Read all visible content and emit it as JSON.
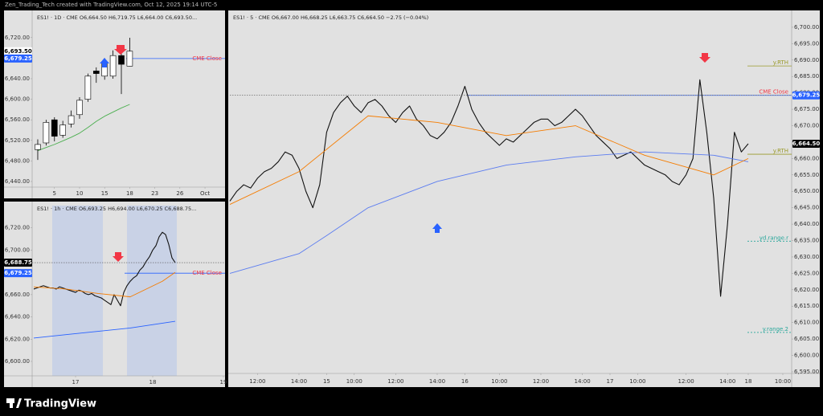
{
  "header": {
    "credit": "Zen_Trading_Tech created with TradingView.com, Oct 12, 2025 19:14 UTC-5"
  },
  "footer": {
    "brand": "TradingView"
  },
  "chart_data": [
    {
      "type": "candlestick",
      "subtitle": "ES1! · 1D · CME O6,664.50 H6,719.75 L6,664.00 C6,693.50...",
      "open": [
        6502,
        6515,
        6560,
        6530,
        6552,
        6570,
        6600,
        6655,
        6645,
        6645,
        6685,
        6664.5
      ],
      "high": [
        6522,
        6560,
        6565,
        6558,
        6578,
        6604,
        6650,
        6662,
        6680,
        6695,
        6700,
        6719.75
      ],
      "low": [
        6482,
        6510,
        6518,
        6525,
        6545,
        6562,
        6595,
        6632,
        6638,
        6640,
        6610,
        6664
      ],
      "close": [
        6512,
        6555,
        6528,
        6550,
        6568,
        6598,
        6645,
        6650,
        6672,
        6685,
        6668,
        6693.5
      ],
      "series": [
        {
          "color": "#4caf50",
          "values": [
            6500,
            6506,
            6512,
            6519,
            6526,
            6534,
            6545,
            6557,
            6567,
            6575,
            6583,
            6590
          ]
        }
      ],
      "xlim": [
        -0.67,
        22.4
      ],
      "xticks": [
        {
          "value": 2,
          "label": "5"
        },
        {
          "value": 5,
          "label": "10"
        },
        {
          "value": 8,
          "label": "15"
        },
        {
          "value": 11,
          "label": "18"
        },
        {
          "value": 14,
          "label": "23"
        },
        {
          "value": 17,
          "label": "26"
        },
        {
          "value": 20,
          "label": "Oct"
        }
      ],
      "ylim": [
        6429,
        6765
      ],
      "yticks": [
        {
          "value": 6440,
          "label": "6,440.00"
        },
        {
          "value": 6480,
          "label": "6,480.00"
        },
        {
          "value": 6520,
          "label": "6,520.00"
        },
        {
          "value": 6560,
          "label": "6,560.00"
        },
        {
          "value": 6600,
          "label": "6,600.00"
        },
        {
          "value": 6640,
          "label": "6,640.00"
        },
        {
          "value": 6680,
          "label": "6,680.00"
        },
        {
          "value": 6720,
          "label": "6,720.00"
        }
      ],
      "levels": [
        {
          "label": "CME Close",
          "value": 6679.25,
          "color": "#2962ff",
          "text_color": "#f23645"
        }
      ],
      "price_labels": [
        {
          "value": 6693.5,
          "label": "6,693.50",
          "color": "#ffffff",
          "text_color": "#000000"
        },
        {
          "value": 6679.25,
          "label": "6,679.25",
          "color": "#2962ff",
          "text_color": "#ffffff"
        }
      ]
    },
    {
      "type": "line",
      "subtitle": "ES1! · 1h · CME O6,693.25 H6,694.00 L6,670.25 C6,688.75...",
      "series": [
        {
          "color": "#111111",
          "values": [
            6665,
            6666,
            6667,
            6668,
            6667,
            6666,
            6666,
            6665,
            6667,
            6666,
            6665,
            6664,
            6663,
            6662,
            6664,
            6663,
            6661,
            6660,
            6661,
            6659,
            6658,
            6657,
            6655,
            6653,
            6651,
            6660,
            6655,
            6650,
            6662,
            6668,
            6672,
            6675,
            6677,
            6682,
            6685,
            6690,
            6694,
            6700,
            6704,
            6712,
            6716,
            6714,
            6705,
            6693,
            6688.75
          ]
        },
        {
          "color": "#2962ff",
          "x": [
            0,
            10,
            20,
            30,
            44
          ],
          "values": [
            6621,
            6624,
            6627,
            6630,
            6636
          ]
        },
        {
          "color": "#f57c00",
          "x": [
            0,
            10,
            20,
            30,
            40,
            44
          ],
          "values": [
            6667,
            6665,
            6661,
            6658,
            6672,
            6680
          ]
        }
      ],
      "xlim": [
        -0.5,
        59.5
      ],
      "xticks": [
        {
          "value": 13,
          "label": "17"
        },
        {
          "value": 37,
          "label": "18"
        },
        {
          "value": 59,
          "label": "19"
        }
      ],
      "ylim": [
        6587,
        6740
      ],
      "yticks": [
        {
          "value": 6600,
          "label": "6,600.00"
        },
        {
          "value": 6620,
          "label": "6,620.00"
        },
        {
          "value": 6640,
          "label": "6,640.00"
        },
        {
          "value": 6660,
          "label": "6,660.00"
        },
        {
          "value": 6680,
          "label": "6,680.00"
        },
        {
          "value": 6700,
          "label": "6,700.00"
        },
        {
          "value": 6720,
          "label": "6,720.00"
        }
      ],
      "levels": [
        {
          "label": "CME Close",
          "value": 6679.25,
          "color": "#2962ff",
          "text_color": "#f23645"
        }
      ],
      "price_labels": [
        {
          "value": 6688.75,
          "label": "6,688.75",
          "color": "#000000",
          "text_color": "#ffffff"
        },
        {
          "value": 6679.25,
          "label": "6,679.25",
          "color": "#2962ff",
          "text_color": "#ffffff"
        }
      ]
    },
    {
      "type": "line",
      "subtitle": "ES1! · 5 · CME O6,667.00 H6,668.25 L6,663.75 C6,664.50 −2.75 (−0.04%)",
      "series": [
        {
          "color": "#111111",
          "values": [
            6647,
            6650,
            6652,
            6651,
            6654,
            6656,
            6657,
            6659,
            6662,
            6661,
            6657,
            6650,
            6645,
            6652,
            6668,
            6674,
            6677,
            6679,
            6676,
            6674,
            6677,
            6678,
            6676,
            6673,
            6671,
            6674,
            6676,
            6672,
            6670,
            6667,
            6666,
            6668,
            6671,
            6676,
            6682,
            6675,
            6671,
            6668,
            6666,
            6664,
            6666,
            6665,
            6667,
            6669,
            6671,
            6672,
            6672,
            6670,
            6671,
            6673,
            6675,
            6673,
            6670,
            6667,
            6665,
            6663,
            6660,
            6661,
            6662,
            6660,
            6658,
            6657,
            6656,
            6655,
            6653,
            6652,
            6655,
            6660,
            6684,
            6668,
            6648,
            6618,
            6640,
            6668,
            6662,
            6664.5
          ]
        },
        {
          "color": "#5b7cf0",
          "x": [
            0,
            10,
            14,
            20,
            30,
            40,
            50,
            60,
            70,
            75
          ],
          "values": [
            6625,
            6631,
            6636.5,
            6645,
            6653,
            6658,
            6660.5,
            6662,
            6661,
            6659
          ]
        },
        {
          "color": "#f57c00",
          "x": [
            0,
            10,
            20,
            30,
            40,
            50,
            60,
            70,
            75
          ],
          "values": [
            6646,
            6656,
            6673,
            6671,
            6667,
            6670,
            6661,
            6655,
            6660
          ]
        }
      ],
      "xlim": [
        0,
        81.28
      ],
      "xticks": [
        {
          "value": 4,
          "label": "12:00"
        },
        {
          "value": 10,
          "label": "14:00"
        },
        {
          "value": 14,
          "label": "15"
        },
        {
          "value": 18,
          "label": "10:00"
        },
        {
          "value": 24,
          "label": "12:00"
        },
        {
          "value": 30,
          "label": "14:00"
        },
        {
          "value": 34,
          "label": "16"
        },
        {
          "value": 39,
          "label": "10:00"
        },
        {
          "value": 45,
          "label": "12:00"
        },
        {
          "value": 51,
          "label": "14:00"
        },
        {
          "value": 55,
          "label": "17"
        },
        {
          "value": 59,
          "label": "10:00"
        },
        {
          "value": 66,
          "label": "12:00"
        },
        {
          "value": 72,
          "label": "14:00"
        },
        {
          "value": 75,
          "label": "18"
        },
        {
          "value": 80,
          "label": "10:00"
        }
      ],
      "ylim": [
        6594.5,
        6703.9
      ],
      "yticks": [
        {
          "value": 6595,
          "label": "6,595.00"
        },
        {
          "value": 6600,
          "label": "6,600.00"
        },
        {
          "value": 6605,
          "label": "6,605.00"
        },
        {
          "value": 6610,
          "label": "6,610.00"
        },
        {
          "value": 6615,
          "label": "6,615.00"
        },
        {
          "value": 6620,
          "label": "6,620.00"
        },
        {
          "value": 6625,
          "label": "6,625.00"
        },
        {
          "value": 6630,
          "label": "6,630.00"
        },
        {
          "value": 6635,
          "label": "6,635.00"
        },
        {
          "value": 6640,
          "label": "6,640.00"
        },
        {
          "value": 6645,
          "label": "6,645.00"
        },
        {
          "value": 6650,
          "label": "6,650.00"
        },
        {
          "value": 6655,
          "label": "6,655.00"
        },
        {
          "value": 6660,
          "label": "6,660.00"
        },
        {
          "value": 6665,
          "label": "6,665.00"
        },
        {
          "value": 6670,
          "label": "6,670.00"
        },
        {
          "value": 6675,
          "label": "6,675.00"
        },
        {
          "value": 6680,
          "label": "6,680.00"
        },
        {
          "value": 6685,
          "label": "6,685.00"
        },
        {
          "value": 6690,
          "label": "6,690.00"
        },
        {
          "value": 6695,
          "label": "6,695.00"
        },
        {
          "value": 6700,
          "label": "6,700.00"
        }
      ],
      "levels": [
        {
          "label": "y.RTH",
          "value": 6688.2,
          "color": "#9a9a2a",
          "text_color": "#9a9a2a"
        },
        {
          "label": "CME Close",
          "value": 6679.25,
          "color": "#2962ff",
          "text_color": "#f23645"
        },
        {
          "label": "y.RTH",
          "value": 6661.3,
          "color": "#9a9a2a",
          "text_color": "#9a9a2a"
        },
        {
          "label": "yd.range.r",
          "value": 6634.8,
          "color": "#26a69a",
          "text_color": "#26a69a"
        },
        {
          "label": "y.range.2",
          "value": 6607,
          "color": "#26a69a",
          "text_color": "#26a69a"
        }
      ],
      "price_labels": [
        {
          "value": 6679.25,
          "label": "6,679.25",
          "color": "#2962ff",
          "text_color": "#ffffff"
        },
        {
          "value": 6664.5,
          "label": "6,664.50",
          "color": "#000000",
          "text_color": "#ffffff"
        }
      ]
    }
  ]
}
